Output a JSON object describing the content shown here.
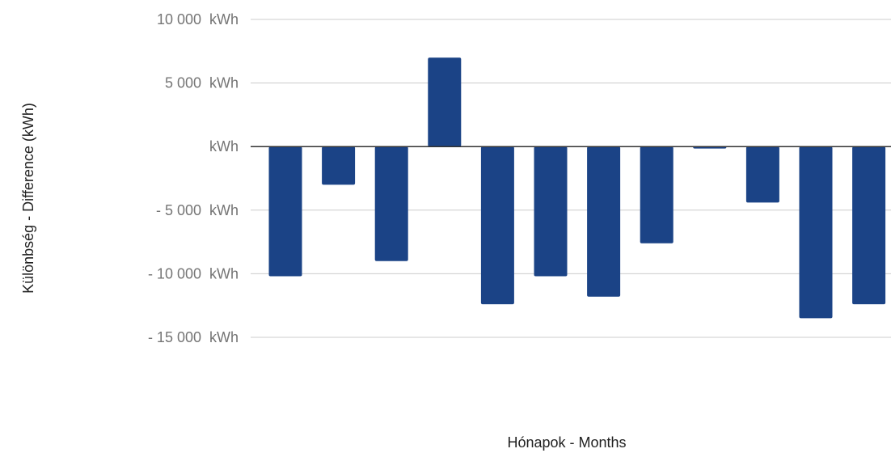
{
  "chart_data": {
    "type": "bar",
    "title": "",
    "xlabel": "Hónapok - Months",
    "ylabel": "Különbség - Difference (kWh)",
    "unit": "kWh",
    "ylim": [
      -15000,
      10000
    ],
    "y_ticks": [
      {
        "value": 10000,
        "label": "10 000  kWh"
      },
      {
        "value": 5000,
        "label": "5 000  kWh"
      },
      {
        "value": 0,
        "label": "kWh"
      },
      {
        "value": -5000,
        "label": "- 5 000  kWh"
      },
      {
        "value": -10000,
        "label": "- 10 000  kWh"
      },
      {
        "value": -15000,
        "label": "- 15 000  kWh"
      }
    ],
    "values": [
      -10200,
      -3000,
      -9000,
      7000,
      -12400,
      -10200,
      -11800,
      -7600,
      -150,
      -4400,
      -13500,
      -12400
    ],
    "grid": true,
    "legend": "none",
    "colors": {
      "bar": "#1b4386",
      "grid": "#cccccc",
      "zero_line": "#333333",
      "tick_text": "#757575",
      "axis_title_text": "#222222"
    }
  }
}
